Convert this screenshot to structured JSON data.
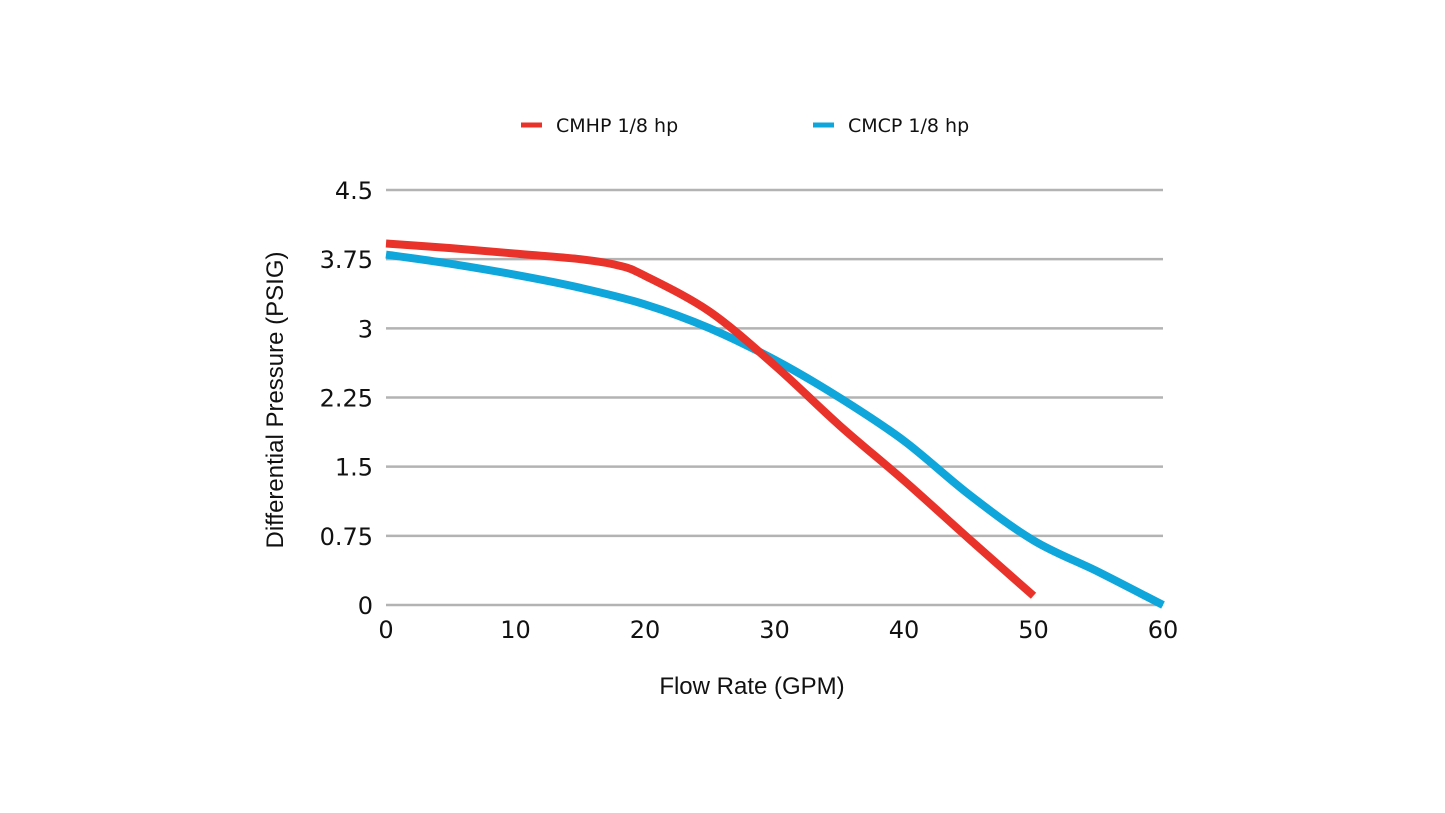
{
  "chart_data": {
    "type": "line",
    "xlabel": "Flow Rate (GPM)",
    "ylabel": "Differential Pressure (PSIG)",
    "xlim": [
      0,
      60
    ],
    "ylim": [
      0,
      4.5
    ],
    "x_ticks": [
      "0",
      "10",
      "20",
      "30",
      "40",
      "50",
      "60"
    ],
    "y_ticks": [
      "0",
      "0.75",
      "1.5",
      "2.25",
      "3",
      "3.75",
      "4.5"
    ],
    "grid": "horizontal",
    "legend_position": "top-center",
    "series": [
      {
        "name": "CMHP 1/8 hp",
        "color": "#e8322a",
        "x": [
          0,
          5,
          10,
          15,
          18,
          20,
          25,
          30,
          35,
          40,
          45,
          50
        ],
        "y": [
          3.92,
          3.87,
          3.81,
          3.75,
          3.68,
          3.57,
          3.18,
          2.6,
          1.95,
          1.35,
          0.72,
          0.1
        ]
      },
      {
        "name": "CMCP 1/8 hp",
        "color": "#0fa6dc",
        "x": [
          0,
          5,
          10,
          15,
          20,
          25,
          30,
          35,
          40,
          45,
          50,
          55,
          60
        ],
        "y": [
          3.8,
          3.7,
          3.58,
          3.44,
          3.26,
          3.0,
          2.66,
          2.25,
          1.78,
          1.2,
          0.7,
          0.36,
          0.0
        ]
      }
    ]
  }
}
